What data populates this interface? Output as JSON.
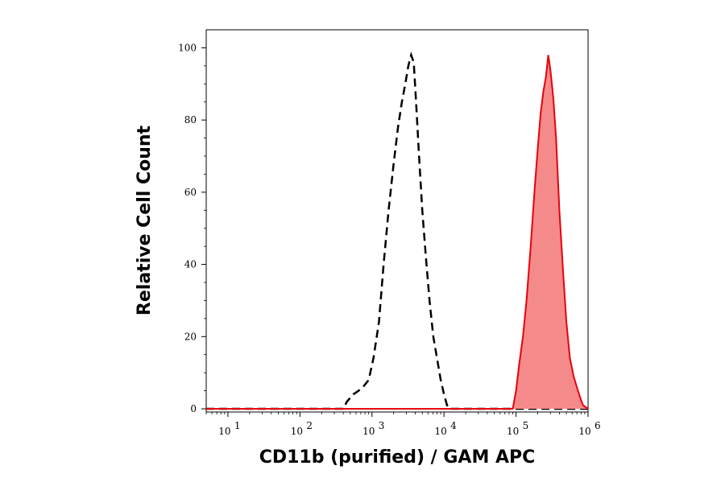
{
  "chart_data": {
    "type": "area",
    "title": "",
    "xlabel": "CD11b (purified) / GAM APC",
    "ylabel": "Relative Cell Count",
    "x_scale": "log",
    "xlim": [
      5,
      1000000
    ],
    "ylim": [
      0,
      105
    ],
    "x_ticks": [
      {
        "value": 10,
        "base": "10",
        "exp": "1"
      },
      {
        "value": 100,
        "base": "10",
        "exp": "2"
      },
      {
        "value": 1000,
        "base": "10",
        "exp": "3"
      },
      {
        "value": 10000,
        "base": "10",
        "exp": "4"
      },
      {
        "value": 100000,
        "base": "10",
        "exp": "5"
      },
      {
        "value": 1000000,
        "base": "10",
        "exp": "6"
      }
    ],
    "y_ticks": [
      0,
      20,
      40,
      60,
      80,
      100
    ],
    "grid": false,
    "legend": "none",
    "series": [
      {
        "style": "dashed-outline",
        "color": "#000000",
        "x": [
          5,
          400,
          450,
          550,
          650,
          750,
          900,
          1050,
          1250,
          1450,
          1700,
          2000,
          2300,
          2600,
          2900,
          3200,
          3500,
          3800,
          4100,
          4500,
          5000,
          5600,
          6300,
          7100,
          8000,
          9000,
          10000,
          11000,
          12000,
          1000000
        ],
        "y": [
          0,
          0,
          2,
          4,
          5,
          6,
          8,
          14,
          24,
          40,
          55,
          68,
          78,
          85,
          90,
          95,
          98,
          96,
          85,
          70,
          55,
          42,
          30,
          20,
          14,
          8,
          4,
          1,
          0,
          0
        ]
      },
      {
        "style": "filled",
        "color": "#e8000b",
        "fill": "#f58a8a",
        "x": [
          5,
          90000,
          100000,
          110000,
          125000,
          140000,
          160000,
          180000,
          200000,
          220000,
          240000,
          260000,
          280000,
          300000,
          330000,
          360000,
          400000,
          450000,
          500000,
          560000,
          630000,
          700000,
          780000,
          850000,
          1000000
        ],
        "y": [
          0,
          0,
          5,
          12,
          20,
          30,
          45,
          60,
          72,
          82,
          88,
          92,
          98,
          94,
          86,
          75,
          55,
          38,
          24,
          14,
          9,
          6,
          3,
          1,
          0
        ]
      }
    ]
  }
}
